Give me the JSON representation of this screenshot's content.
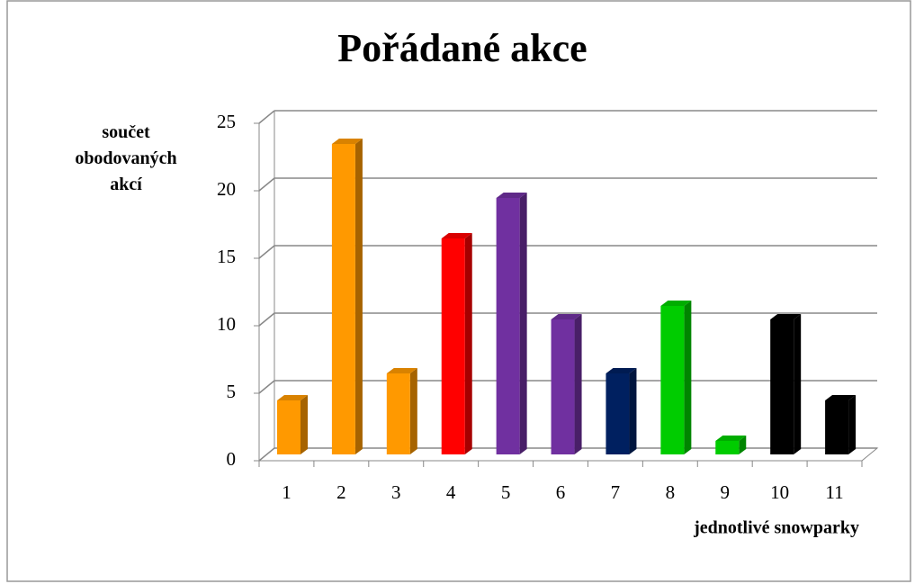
{
  "chart_data": {
    "type": "bar3d",
    "title": "Pořádané akce",
    "y_label": "součet obodovaných akcí",
    "x_label": "jednotlivé snowparky",
    "categories": [
      "1",
      "2",
      "3",
      "4",
      "5",
      "6",
      "7",
      "8",
      "9",
      "10",
      "11"
    ],
    "values": [
      4,
      23,
      6,
      16,
      19,
      10,
      6,
      11,
      1,
      10,
      4
    ],
    "colors": [
      "#ff9900",
      "#ff9900",
      "#ff9900",
      "#ff0000",
      "#7030a0",
      "#7030a0",
      "#002060",
      "#00cc00",
      "#00cc00",
      "#000000",
      "#000000"
    ],
    "ylim": [
      0,
      25
    ],
    "yticks": [
      0,
      5,
      10,
      15,
      20,
      25
    ],
    "grid": true
  }
}
